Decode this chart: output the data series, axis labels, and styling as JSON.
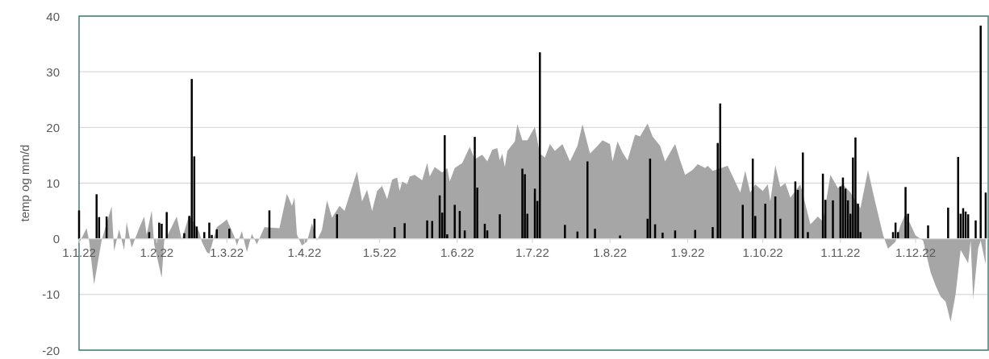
{
  "chart_data": {
    "type": "bar",
    "ylabel": "temp og mm/d",
    "xlim": [
      "2022-01-01",
      "2022-12-30"
    ],
    "ylim": [
      -20,
      40
    ],
    "yticks": [
      -20,
      -10,
      0,
      10,
      20,
      30,
      40
    ],
    "xticks": [
      {
        "value": "2022-01-01",
        "label": "1.1.22"
      },
      {
        "value": "2022-02-01",
        "label": "1.2.22"
      },
      {
        "value": "2022-03-01",
        "label": "1.3.22"
      },
      {
        "value": "2022-04-01",
        "label": "1.4.22"
      },
      {
        "value": "2022-05-01",
        "label": "1.5.22"
      },
      {
        "value": "2022-06-01",
        "label": "1.6.22"
      },
      {
        "value": "2022-07-01",
        "label": "1.7.22"
      },
      {
        "value": "2022-08-01",
        "label": "1.8.22"
      },
      {
        "value": "2022-09-01",
        "label": "1.9.22"
      },
      {
        "value": "2022-10-01",
        "label": "1.10.22"
      },
      {
        "value": "2022-11-01",
        "label": "1.11.22"
      },
      {
        "value": "2022-12-01",
        "label": "1.12.22"
      }
    ],
    "grid": "y",
    "series": [
      {
        "type": "area",
        "color": "#a6a6a6",
        "x": [
          "2022-01-01",
          "2022-01-04",
          "2022-01-05",
          "2022-01-07",
          "2022-01-10",
          "2022-01-14",
          "2022-01-15",
          "2022-01-17",
          "2022-01-19",
          "2022-01-20",
          "2022-01-22",
          "2022-01-25",
          "2022-01-27",
          "2022-01-28",
          "2022-01-30",
          "2022-01-31",
          "2022-02-03",
          "2022-02-04",
          "2022-02-06",
          "2022-02-09",
          "2022-02-11",
          "2022-02-14",
          "2022-02-18",
          "2022-02-19",
          "2022-02-21",
          "2022-02-22",
          "2022-02-25",
          "2022-02-28",
          "2022-03-01",
          "2022-03-04",
          "2022-03-05",
          "2022-03-07",
          "2022-03-09",
          "2022-03-11",
          "2022-03-13",
          "2022-03-16",
          "2022-03-22",
          "2022-03-25",
          "2022-03-27",
          "2022-03-28",
          "2022-03-29",
          "2022-03-31",
          "2022-04-02",
          "2022-04-04",
          "2022-04-06",
          "2022-04-08",
          "2022-04-10",
          "2022-04-12",
          "2022-04-15",
          "2022-04-17",
          "2022-04-20",
          "2022-04-22",
          "2022-04-24",
          "2022-04-26",
          "2022-04-28",
          "2022-04-30",
          "2022-05-02",
          "2022-05-04",
          "2022-05-06",
          "2022-05-08",
          "2022-05-09",
          "2022-05-10",
          "2022-05-12",
          "2022-05-13",
          "2022-05-15",
          "2022-05-18",
          "2022-05-20",
          "2022-05-21",
          "2022-05-23",
          "2022-05-26",
          "2022-05-28",
          "2022-05-29",
          "2022-05-31",
          "2022-06-03",
          "2022-06-06",
          "2022-06-08",
          "2022-06-11",
          "2022-06-13",
          "2022-06-15",
          "2022-06-17",
          "2022-06-18",
          "2022-06-19",
          "2022-06-20",
          "2022-06-21",
          "2022-06-24",
          "2022-06-25",
          "2022-06-27",
          "2022-06-29",
          "2022-07-02",
          "2022-07-04",
          "2022-07-06",
          "2022-07-08",
          "2022-07-10",
          "2022-07-13",
          "2022-07-16",
          "2022-07-19",
          "2022-07-21",
          "2022-07-24",
          "2022-07-27",
          "2022-07-29",
          "2022-08-01",
          "2022-08-02",
          "2022-08-04",
          "2022-08-06",
          "2022-08-08",
          "2022-08-11",
          "2022-08-13",
          "2022-08-16",
          "2022-08-18",
          "2022-08-21",
          "2022-08-23",
          "2022-08-26",
          "2022-08-27",
          "2022-08-29",
          "2022-08-31",
          "2022-09-03",
          "2022-09-05",
          "2022-09-08",
          "2022-09-09",
          "2022-09-11",
          "2022-09-17",
          "2022-09-19",
          "2022-09-22",
          "2022-09-24",
          "2022-09-26",
          "2022-09-28",
          "2022-10-01",
          "2022-10-03",
          "2022-10-04",
          "2022-10-06",
          "2022-10-08",
          "2022-10-10",
          "2022-10-12",
          "2022-10-16",
          "2022-10-18",
          "2022-10-20",
          "2022-10-23",
          "2022-10-25",
          "2022-10-28",
          "2022-10-31",
          "2022-11-02",
          "2022-11-05",
          "2022-11-09",
          "2022-11-12",
          "2022-11-15",
          "2022-11-18",
          "2022-11-20",
          "2022-11-23",
          "2022-11-25",
          "2022-11-27",
          "2022-12-01",
          "2022-12-04",
          "2022-12-07",
          "2022-12-09",
          "2022-12-11",
          "2022-12-13",
          "2022-12-15",
          "2022-12-17",
          "2022-12-19",
          "2022-12-22",
          "2022-12-23",
          "2022-12-24",
          "2022-12-26",
          "2022-12-27",
          "2022-12-29"
        ],
        "values": [
          -0.8,
          1.9,
          -0.3,
          -8.2,
          -0.3,
          5.8,
          -2.2,
          1.7,
          -2.0,
          3.0,
          -1.6,
          1.9,
          4.0,
          0.7,
          5.1,
          -1.0,
          -7.0,
          -0.3,
          1.2,
          4.0,
          -0.2,
          4.3,
          1.2,
          -0.5,
          -2.4,
          -2.7,
          2.1,
          3.1,
          3.5,
          0.4,
          -1.2,
          1.4,
          -2.4,
          0.9,
          -1.0,
          2.1,
          1.9,
          8.1,
          5.9,
          7.4,
          0.7,
          -1.2,
          -0.5,
          2.8,
          -0.3,
          1.6,
          6.9,
          3.8,
          5.9,
          5.0,
          9.3,
          12.1,
          6.7,
          8.8,
          5.0,
          8.6,
          9.5,
          7.1,
          10.6,
          11.0,
          8.6,
          10.3,
          9.8,
          11.2,
          11.5,
          10.5,
          13.6,
          11.2,
          12.9,
          11.9,
          12.7,
          10.3,
          12.7,
          13.6,
          16.5,
          14.3,
          15.1,
          13.9,
          16.0,
          16.3,
          14.1,
          15.3,
          12.9,
          15.8,
          17.5,
          20.6,
          17.7,
          17.7,
          20.1,
          15.3,
          14.6,
          17.0,
          15.8,
          17.0,
          13.9,
          16.7,
          20.6,
          15.3,
          16.7,
          17.7,
          17.0,
          13.9,
          17.5,
          15.5,
          14.1,
          18.7,
          18.4,
          20.7,
          18.4,
          16.7,
          13.9,
          16.3,
          17.0,
          14.1,
          11.5,
          12.4,
          13.4,
          12.7,
          13.1,
          12.2,
          13.1,
          11.2,
          8.3,
          12.2,
          8.3,
          9.8,
          8.6,
          9.8,
          6.7,
          13.2,
          9.3,
          10.0,
          7.4,
          9.8,
          6.2,
          2.6,
          4.0,
          3.1,
          11.5,
          9.1,
          9.8,
          8.3,
          5.5,
          12.3,
          6.4,
          0.7,
          -1.8,
          -0.5,
          2.4,
          4.5,
          0.6,
          -0.3,
          -6.0,
          -8.4,
          -10.4,
          -11.3,
          -14.9,
          -9.9,
          -2.0,
          -4.4,
          -0.3,
          -10.8,
          -1.7,
          -0.3,
          -4.6
        ]
      },
      {
        "color": "#000000",
        "x": [
          "2022-01-01",
          "2022-01-08",
          "2022-01-09",
          "2022-01-12",
          "2022-01-29",
          "2022-02-02",
          "2022-02-03",
          "2022-02-05",
          "2022-02-12",
          "2022-02-14",
          "2022-02-15",
          "2022-02-16",
          "2022-02-17",
          "2022-02-20",
          "2022-02-22",
          "2022-02-23",
          "2022-02-25",
          "2022-03-02",
          "2022-03-18",
          "2022-04-05",
          "2022-04-14",
          "2022-05-07",
          "2022-05-11",
          "2022-05-20",
          "2022-05-22",
          "2022-05-25",
          "2022-05-26",
          "2022-05-27",
          "2022-05-28",
          "2022-05-31",
          "2022-06-02",
          "2022-06-04",
          "2022-06-08",
          "2022-06-09",
          "2022-06-12",
          "2022-06-13",
          "2022-06-18",
          "2022-06-27",
          "2022-06-28",
          "2022-06-29",
          "2022-07-02",
          "2022-07-03",
          "2022-07-04",
          "2022-07-14",
          "2022-07-19",
          "2022-07-23",
          "2022-07-26",
          "2022-08-05",
          "2022-08-16",
          "2022-08-17",
          "2022-08-19",
          "2022-08-22",
          "2022-08-27",
          "2022-09-04",
          "2022-09-11",
          "2022-09-13",
          "2022-09-14",
          "2022-09-23",
          "2022-09-27",
          "2022-09-28",
          "2022-10-02",
          "2022-10-06",
          "2022-10-08",
          "2022-10-14",
          "2022-10-15",
          "2022-10-17",
          "2022-10-19",
          "2022-10-25",
          "2022-10-26",
          "2022-10-29",
          "2022-11-01",
          "2022-11-02",
          "2022-11-03",
          "2022-11-04",
          "2022-11-05",
          "2022-11-06",
          "2022-11-07",
          "2022-11-08",
          "2022-11-09",
          "2022-11-22",
          "2022-11-23",
          "2022-11-24",
          "2022-11-27",
          "2022-11-28",
          "2022-12-06",
          "2022-12-14",
          "2022-12-18",
          "2022-12-19",
          "2022-12-20",
          "2022-12-21",
          "2022-12-22",
          "2022-12-25",
          "2022-12-27",
          "2022-12-29"
        ],
        "values": [
          5.1,
          8.0,
          3.9,
          4.0,
          1.2,
          2.9,
          2.7,
          4.8,
          1.0,
          4.1,
          28.7,
          14.8,
          2.2,
          1.2,
          2.9,
          0.7,
          1.7,
          1.8,
          5.1,
          3.6,
          4.4,
          2.1,
          2.8,
          3.3,
          3.2,
          7.8,
          4.7,
          18.6,
          0.8,
          6.1,
          5.0,
          1.5,
          18.3,
          9.2,
          2.7,
          1.5,
          4.4,
          12.6,
          11.6,
          4.5,
          9.0,
          6.8,
          33.5,
          2.5,
          1.3,
          13.9,
          1.8,
          0.6,
          3.6,
          14.4,
          2.6,
          1.1,
          1.5,
          1.6,
          2.1,
          17.2,
          24.3,
          6.1,
          14.4,
          4.1,
          6.3,
          7.6,
          3.6,
          10.3,
          8.8,
          15.5,
          1.2,
          11.7,
          7.0,
          6.9,
          9.4,
          11.0,
          9.0,
          6.9,
          4.5,
          14.6,
          18.2,
          6.3,
          1.2,
          1.2,
          2.9,
          1.2,
          9.3,
          4.5,
          2.4,
          5.6,
          14.7,
          4.5,
          5.5,
          4.9,
          4.4,
          3.3,
          38.3,
          8.3
        ]
      }
    ]
  }
}
